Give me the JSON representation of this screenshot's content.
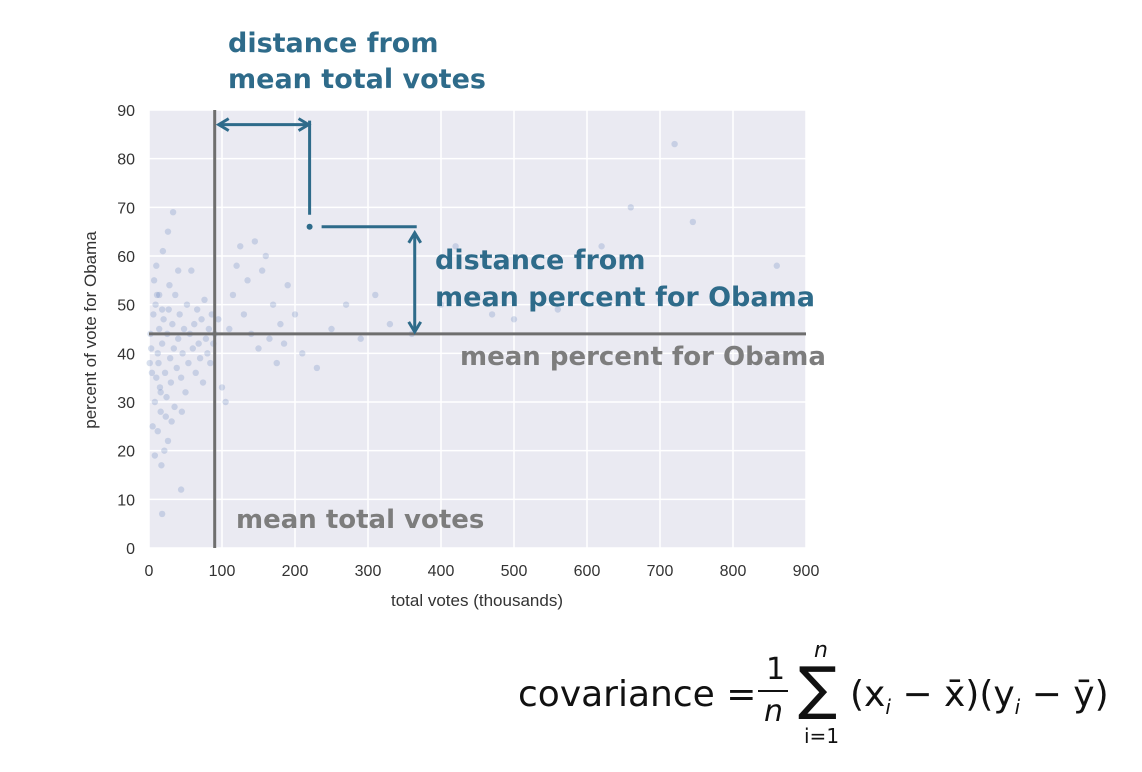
{
  "chart_data": {
    "type": "scatter",
    "xlabel": "total votes (thousands)",
    "ylabel": "percent of vote for Obama",
    "xlim": [
      0,
      900
    ],
    "ylim": [
      0,
      90
    ],
    "x_ticks": [
      "0",
      "100",
      "200",
      "300",
      "400",
      "500",
      "600",
      "700",
      "800",
      "900"
    ],
    "y_ticks": [
      "0",
      "10",
      "20",
      "30",
      "40",
      "50",
      "60",
      "70",
      "80",
      "90"
    ],
    "grid": true,
    "mean_x": 90,
    "mean_y": 44,
    "highlight_point": {
      "x": 220,
      "y": 66
    },
    "points": [
      [
        5,
        25
      ],
      [
        8,
        30
      ],
      [
        10,
        35
      ],
      [
        12,
        40
      ],
      [
        14,
        45
      ],
      [
        6,
        48
      ],
      [
        9,
        50
      ],
      [
        11,
        52
      ],
      [
        13,
        38
      ],
      [
        15,
        33
      ],
      [
        16,
        28
      ],
      [
        18,
        42
      ],
      [
        20,
        47
      ],
      [
        22,
        36
      ],
      [
        24,
        31
      ],
      [
        25,
        44
      ],
      [
        27,
        49
      ],
      [
        29,
        39
      ],
      [
        30,
        34
      ],
      [
        32,
        46
      ],
      [
        34,
        41
      ],
      [
        35,
        29
      ],
      [
        36,
        52
      ],
      [
        38,
        37
      ],
      [
        40,
        43
      ],
      [
        42,
        48
      ],
      [
        44,
        35
      ],
      [
        46,
        40
      ],
      [
        48,
        45
      ],
      [
        50,
        32
      ],
      [
        52,
        50
      ],
      [
        54,
        38
      ],
      [
        56,
        44
      ],
      [
        58,
        57
      ],
      [
        60,
        41
      ],
      [
        62,
        46
      ],
      [
        64,
        36
      ],
      [
        66,
        49
      ],
      [
        68,
        42
      ],
      [
        70,
        39
      ],
      [
        72,
        47
      ],
      [
        74,
        34
      ],
      [
        76,
        51
      ],
      [
        78,
        43
      ],
      [
        80,
        40
      ],
      [
        82,
        45
      ],
      [
        84,
        38
      ],
      [
        86,
        48
      ],
      [
        88,
        42
      ],
      [
        90,
        44
      ],
      [
        7,
        55
      ],
      [
        10,
        58
      ],
      [
        14,
        52
      ],
      [
        19,
        61
      ],
      [
        23,
        27
      ],
      [
        26,
        22
      ],
      [
        31,
        26
      ],
      [
        33,
        69
      ],
      [
        17,
        17
      ],
      [
        21,
        20
      ],
      [
        3,
        41
      ],
      [
        4,
        36
      ],
      [
        2,
        44
      ],
      [
        1,
        38
      ],
      [
        12,
        24
      ],
      [
        16,
        32
      ],
      [
        18,
        49
      ],
      [
        28,
        54
      ],
      [
        40,
        57
      ],
      [
        45,
        28
      ],
      [
        95,
        47
      ],
      [
        100,
        33
      ],
      [
        105,
        30
      ],
      [
        110,
        45
      ],
      [
        115,
        52
      ],
      [
        120,
        58
      ],
      [
        125,
        62
      ],
      [
        130,
        48
      ],
      [
        135,
        55
      ],
      [
        140,
        44
      ],
      [
        145,
        63
      ],
      [
        150,
        41
      ],
      [
        155,
        57
      ],
      [
        160,
        60
      ],
      [
        165,
        43
      ],
      [
        170,
        50
      ],
      [
        175,
        38
      ],
      [
        180,
        46
      ],
      [
        185,
        42
      ],
      [
        190,
        54
      ],
      [
        200,
        48
      ],
      [
        210,
        40
      ],
      [
        230,
        37
      ],
      [
        250,
        45
      ],
      [
        270,
        50
      ],
      [
        290,
        43
      ],
      [
        310,
        52
      ],
      [
        330,
        46
      ],
      [
        360,
        44
      ],
      [
        400,
        50
      ],
      [
        420,
        62
      ],
      [
        450,
        52
      ],
      [
        470,
        48
      ],
      [
        500,
        47
      ],
      [
        560,
        49
      ],
      [
        620,
        62
      ],
      [
        660,
        70
      ],
      [
        700,
        51
      ],
      [
        720,
        83
      ],
      [
        745,
        67
      ],
      [
        860,
        58
      ],
      [
        18,
        7
      ],
      [
        8,
        19
      ],
      [
        44,
        12
      ],
      [
        26,
        65
      ]
    ]
  },
  "annotations": {
    "x_distance_line1": "distance from",
    "x_distance_line2": "mean total votes",
    "y_distance_line1": "distance from",
    "y_distance_line2": "mean percent for Obama",
    "mean_y_label": "mean percent for Obama",
    "mean_x_label": "mean total votes"
  },
  "formula": {
    "lhs": "covariance =",
    "numerator": "1",
    "denominator": "n",
    "sum_symbol": "∑",
    "sum_upper": "n",
    "sum_lower": "i=1",
    "body": "(x",
    "sub_i_1": "i",
    "mid1": " − x̄)(y",
    "sub_i_2": "i",
    "mid2": " − ȳ)"
  },
  "colors": {
    "plot_bg": "#eaeaf2",
    "grid": "#ffffff",
    "points": "#4c72b0",
    "annotation_blue": "#2e6b8a",
    "mean_lines": "#6e6e6e"
  }
}
